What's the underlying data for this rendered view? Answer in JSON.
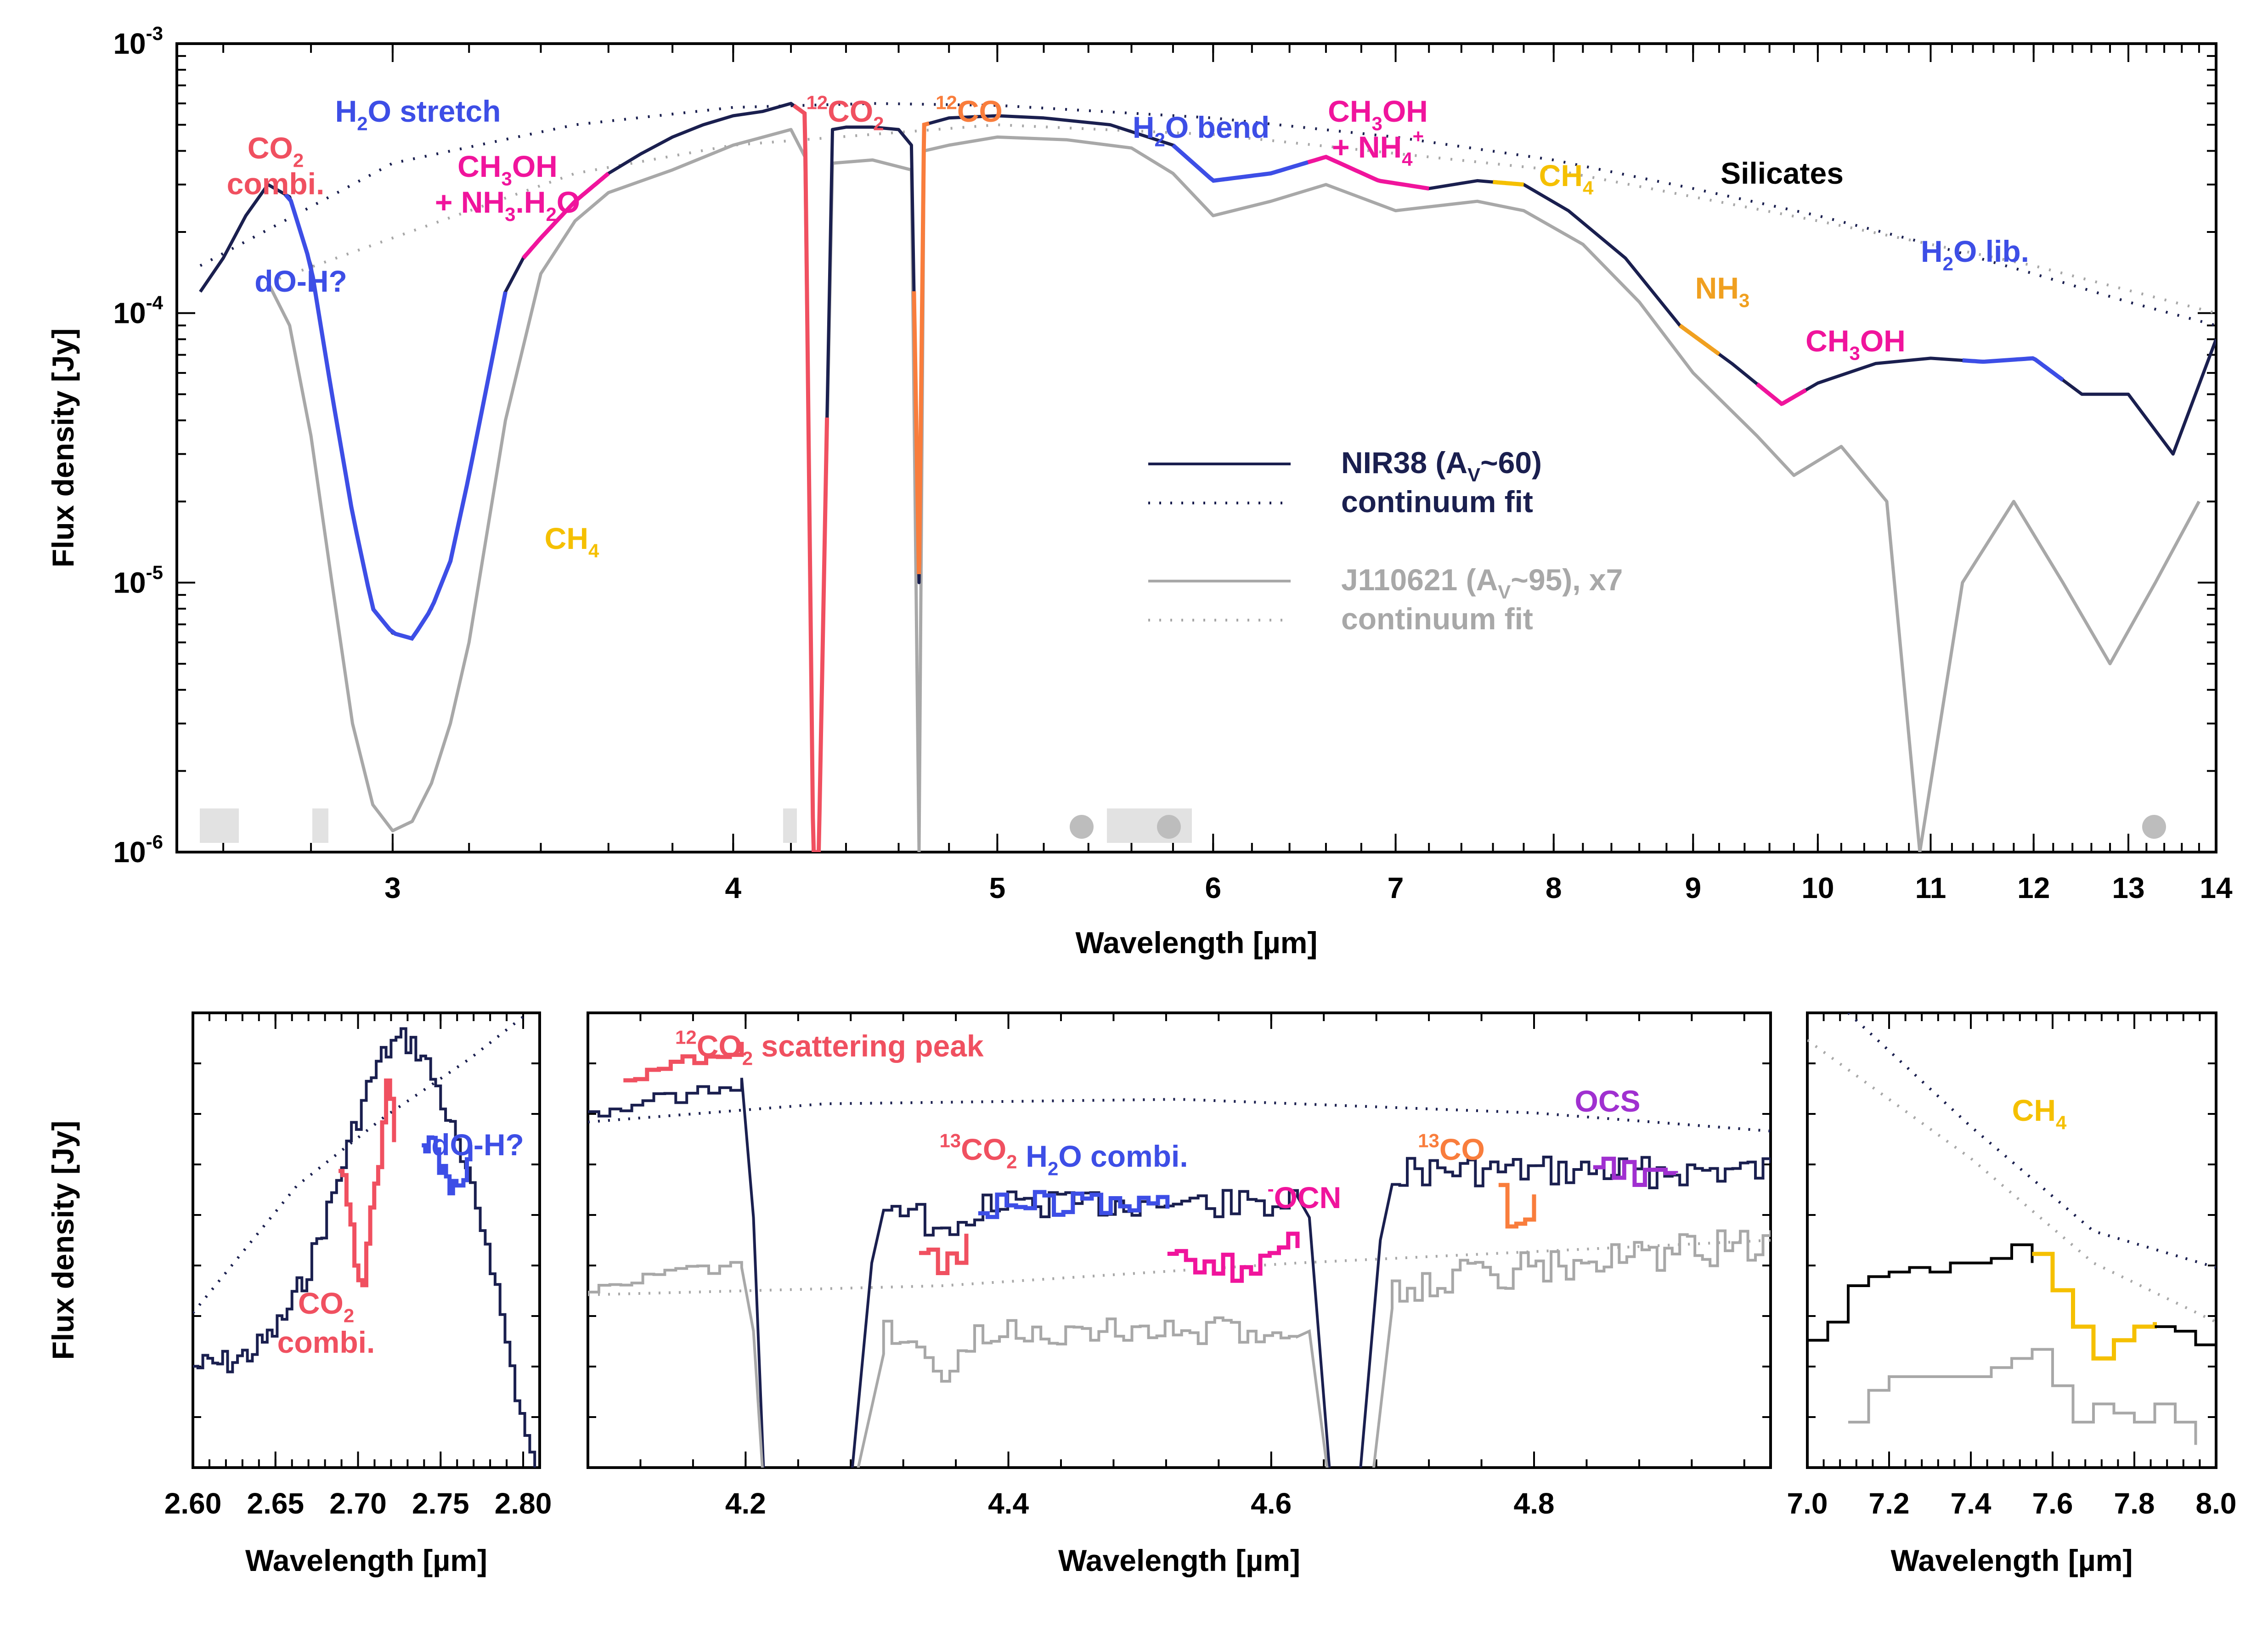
{
  "chart_data": [
    {
      "type": "line",
      "panel": "main",
      "xlabel": "Wavelength [µm]",
      "ylabel": "Flux density [Jy]",
      "xscale": "log",
      "yscale": "log",
      "xlim": [
        2.5,
        14
      ],
      "ylim": [
        1e-06,
        0.001
      ],
      "xticks": [
        3,
        4,
        5,
        6,
        7,
        8,
        9,
        10,
        11,
        12,
        13,
        14
      ],
      "yticks": [
        {
          "value": 1e-06,
          "label": "10",
          "exp": "-6"
        },
        {
          "value": 1e-05,
          "label": "10",
          "exp": "-5"
        },
        {
          "value": 0.0001,
          "label": "10",
          "exp": "-4"
        },
        {
          "value": 0.001,
          "label": "10",
          "exp": "-3"
        }
      ],
      "legend": [
        {
          "label": "NIR38 (A",
          "sub": "V",
          "rest": "~60)",
          "style": "solid",
          "color": "#1a1f4f"
        },
        {
          "label": "continuum fit",
          "style": "dotted",
          "color": "#1a1f4f"
        },
        {
          "label": "J110621 (A",
          "sub": "V",
          "rest": "~95), x7",
          "style": "solid",
          "color": "#a8a8a8"
        },
        {
          "label": "continuum fit",
          "style": "dotted",
          "color": "#a8a8a8"
        }
      ],
      "legend_position": "center-right",
      "series": [
        {
          "name": "NIR38 (AV~60)",
          "color": "#1a1f4f",
          "x": [
            2.55,
            2.6,
            2.65,
            2.7,
            2.75,
            2.8,
            2.85,
            2.9,
            2.95,
            3.0,
            3.05,
            3.1,
            3.15,
            3.2,
            3.25,
            3.3,
            3.35,
            3.4,
            3.5,
            3.6,
            3.7,
            3.8,
            3.9,
            4.0,
            4.1,
            4.2,
            4.25,
            4.28,
            4.3,
            4.35,
            4.4,
            4.5,
            4.6,
            4.65,
            4.68,
            4.7,
            4.8,
            5.0,
            5.2,
            5.5,
            5.8,
            6.0,
            6.3,
            6.6,
            6.9,
            7.2,
            7.5,
            7.8,
            8.1,
            8.5,
            8.9,
            9.3,
            9.7,
            10.0,
            10.5,
            11.0,
            11.5,
            12.0,
            12.5,
            13.0,
            13.5,
            14.0
          ],
          "y": [
            0.00012,
            0.00016,
            0.00023,
            0.0003,
            0.00027,
            0.00015,
            5e-05,
            1.8e-05,
            8e-06,
            6.5e-06,
            6.2e-06,
            8e-06,
            1.2e-05,
            2.5e-05,
            5.5e-05,
            0.00012,
            0.00016,
            0.00019,
            0.00026,
            0.00033,
            0.00039,
            0.00045,
            0.0005,
            0.00054,
            0.00056,
            0.0006,
            0.00055,
            1e-06,
            1e-06,
            0.00048,
            0.00049,
            0.00049,
            0.00048,
            0.00042,
            1e-05,
            0.0005,
            0.00053,
            0.00054,
            0.00053,
            0.0005,
            0.00042,
            0.00031,
            0.00033,
            0.00038,
            0.00031,
            0.00029,
            0.00031,
            0.0003,
            0.00024,
            0.00016,
            9e-05,
            6.5e-05,
            4.6e-05,
            5.5e-05,
            6.5e-05,
            6.8e-05,
            6.6e-05,
            6.8e-05,
            5e-05,
            5e-05,
            3e-05,
            8e-05
          ]
        },
        {
          "name": "continuum fit",
          "color": "#1a1f4f",
          "x": [
            2.55,
            3.0,
            3.5,
            4.0,
            4.5,
            5.0,
            6.0,
            7.0,
            8.0,
            9.0,
            10.0,
            11.0,
            12.0,
            13.0,
            14.0
          ],
          "y": [
            0.00015,
            0.00036,
            0.0005,
            0.00058,
            0.0006,
            0.00059,
            0.00053,
            0.00045,
            0.00037,
            0.00029,
            0.00023,
            0.00018,
            0.00014,
            0.00011,
            9e-05
          ]
        },
        {
          "name": "J110621 (AV~95), x7",
          "color": "#a8a8a8",
          "x": [
            2.7,
            2.75,
            2.8,
            2.85,
            2.9,
            2.95,
            3.0,
            3.05,
            3.1,
            3.15,
            3.2,
            3.3,
            3.4,
            3.5,
            3.6,
            3.8,
            4.0,
            4.2,
            4.25,
            4.28,
            4.3,
            4.35,
            4.5,
            4.65,
            4.68,
            4.7,
            4.8,
            5.0,
            5.3,
            5.6,
            5.8,
            6.0,
            6.3,
            6.6,
            7.0,
            7.5,
            7.8,
            8.2,
            8.6,
            9.0,
            9.5,
            9.8,
            10.2,
            10.6,
            10.9,
            11.3,
            11.8,
            12.3,
            12.8,
            13.3,
            13.8
          ],
          "y": [
            0.00013,
            9e-05,
            3.5e-05,
            1e-05,
            3e-06,
            1.5e-06,
            1.2e-06,
            1.3e-06,
            1.8e-06,
            3e-06,
            6e-06,
            4e-05,
            0.00014,
            0.00022,
            0.00028,
            0.00034,
            0.00042,
            0.00048,
            0.00038,
            1e-06,
            1e-06,
            0.00036,
            0.00037,
            0.00034,
            1e-06,
            0.0004,
            0.00042,
            0.00045,
            0.00044,
            0.00041,
            0.00033,
            0.00023,
            0.00026,
            0.0003,
            0.00024,
            0.00026,
            0.00024,
            0.00018,
            0.00011,
            6e-05,
            3.5e-05,
            2.5e-05,
            3.2e-05,
            2e-05,
            1e-06,
            1e-05,
            2e-05,
            1e-05,
            5e-06,
            1e-05,
            2e-05
          ]
        },
        {
          "name": "continuum fit",
          "color": "#a8a8a8",
          "x": [
            2.7,
            3.0,
            3.5,
            4.0,
            5.0,
            6.0,
            8.0,
            10.0,
            12.0,
            14.0
          ],
          "y": [
            0.00013,
            0.00019,
            0.00033,
            0.00042,
            0.0005,
            0.00046,
            0.00034,
            0.00022,
            0.00015,
            0.0001
          ]
        }
      ],
      "features": [
        {
          "label": "CO",
          "sub": "2",
          "line2": "combi.",
          "color": "#f05060"
        },
        {
          "label": "H",
          "sub": "2",
          "rest": "O stretch",
          "color": "#3d4ee6"
        },
        {
          "label": "dO-H?",
          "color": "#3d4ee6"
        },
        {
          "label": "CH",
          "sub": "3",
          "rest": "OH",
          "line2": "+ NH",
          "line2_sub": "3",
          "line2_rest": ".H",
          "line2_sub2": "2",
          "line2_rest2": "O",
          "color": "#f0149c"
        },
        {
          "label": "CH",
          "sub": "4",
          "color": "#f5c000"
        },
        {
          "label": "CO",
          "sup": "12",
          "sub": "2",
          "color": "#f05060"
        },
        {
          "label": "CO",
          "sup": "12",
          "color": "#f97d3c"
        },
        {
          "label": "H",
          "sub": "2",
          "rest": "O bend",
          "color": "#3d4ee6"
        },
        {
          "label": "CH",
          "sub": "3",
          "rest": "OH",
          "line2": "+ NH",
          "line2_sub": "4",
          "line2_sup": "+",
          "color": "#f0149c"
        },
        {
          "label": "CH",
          "sub": "4",
          "color": "#f5c000"
        },
        {
          "label": "Silicates",
          "color": "#000000"
        },
        {
          "label": "NH",
          "sub": "3",
          "color": "#f0a020"
        },
        {
          "label": "CH",
          "sub": "3",
          "rest": "OH",
          "color": "#f0149c"
        },
        {
          "label": "H",
          "sub": "2",
          "rest": "O lib.",
          "color": "#3d4ee6"
        }
      ]
    },
    {
      "type": "line",
      "panel": "zoom-1",
      "xlabel": "Wavelength [µm]",
      "ylabel": "Flux density [Jy]",
      "xlim": [
        2.6,
        2.81
      ],
      "xticks": [
        "2.60",
        "2.65",
        "2.70",
        "2.75",
        "2.80"
      ],
      "features": [
        {
          "label": "CO",
          "sub": "2",
          "line2": "combi.",
          "color": "#f05060"
        },
        {
          "label": "dO-H?",
          "color": "#3d4ee6"
        }
      ]
    },
    {
      "type": "line",
      "panel": "zoom-2",
      "xlabel": "Wavelength [µm]",
      "xlim": [
        4.08,
        4.98
      ],
      "xticks": [
        "4.2",
        "4.4",
        "4.6",
        "4.8"
      ],
      "features": [
        {
          "label": "CO",
          "sup": "12",
          "sub": "2",
          "rest": " scattering peak",
          "color": "#f05060"
        },
        {
          "label": "CO",
          "sup": "13",
          "sub": "2",
          "color": "#f05060"
        },
        {
          "label": "H",
          "sub": "2",
          "rest": "O combi.",
          "color": "#3d4ee6"
        },
        {
          "label": "OCN",
          "sup": "-",
          "color": "#f0149c"
        },
        {
          "label": "CO",
          "sup": "13",
          "color": "#f97d3c"
        },
        {
          "label": "OCS",
          "color": "#a030d0"
        }
      ]
    },
    {
      "type": "line",
      "panel": "zoom-3",
      "xlabel": "Wavelength [µm]",
      "xlim": [
        7.0,
        8.0
      ],
      "xticks": [
        "7.0",
        "7.2",
        "7.4",
        "7.6",
        "7.8",
        "8.0"
      ],
      "features": [
        {
          "label": "CH",
          "sub": "4",
          "color": "#f5c000"
        }
      ]
    }
  ]
}
